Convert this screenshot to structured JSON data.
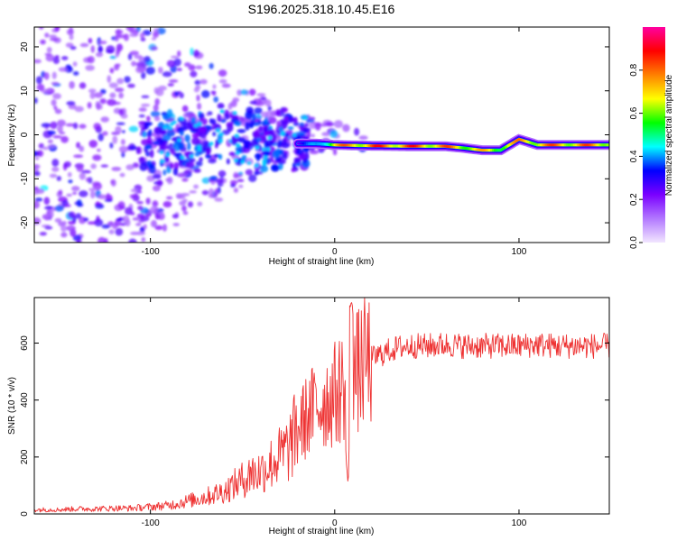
{
  "title": "S196.2025.318.10.45.E16",
  "chart_data": [
    {
      "type": "heatmap",
      "name": "spectrogram",
      "xlabel": "Height of straight line (km)",
      "ylabel": "Frequency (Hz)",
      "xlim": [
        -163,
        149
      ],
      "ylim": [
        -24.5,
        24.5
      ],
      "xticks": [
        -100,
        0,
        100
      ],
      "xtick_labels": [
        "-100",
        "0",
        "100"
      ],
      "yticks": [
        -20,
        -10,
        0,
        10,
        20
      ],
      "ytick_labels": [
        "-20",
        "-10",
        "0",
        "10",
        "20"
      ],
      "colorbar": {
        "label": "Normalized spectral amplitude",
        "range": [
          0,
          1
        ],
        "ticks": [
          0.0,
          0.2,
          0.4,
          0.6,
          0.8
        ],
        "tick_labels": [
          "0.0",
          "0.2",
          "0.4",
          "0.6",
          "0.8"
        ],
        "colors": [
          "#f2e6ff",
          "#b278ff",
          "#7a00ff",
          "#0000ff",
          "#00ffff",
          "#00ff00",
          "#ffff00",
          "#ff8000",
          "#ff0000",
          "#ff00a0"
        ]
      },
      "ridge": [
        {
          "x": -100,
          "f": -2.0,
          "amp": 0.35
        },
        {
          "x": -80,
          "f": -1.0,
          "amp": 0.3
        },
        {
          "x": -60,
          "f": 0.5,
          "amp": 0.3
        },
        {
          "x": -40,
          "f": -1.5,
          "amp": 0.3
        },
        {
          "x": -20,
          "f": -2.0,
          "amp": 0.3
        },
        {
          "x": -10,
          "f": -2.0,
          "amp": 0.45
        },
        {
          "x": 0,
          "f": -2.3,
          "amp": 0.8
        },
        {
          "x": 20,
          "f": -2.5,
          "amp": 0.9
        },
        {
          "x": 40,
          "f": -2.6,
          "amp": 0.9
        },
        {
          "x": 60,
          "f": -2.6,
          "amp": 0.85
        },
        {
          "x": 70,
          "f": -3.0,
          "amp": 0.8
        },
        {
          "x": 80,
          "f": -3.5,
          "amp": 0.75
        },
        {
          "x": 90,
          "f": -3.5,
          "amp": 0.75
        },
        {
          "x": 100,
          "f": -1.0,
          "amp": 0.8
        },
        {
          "x": 110,
          "f": -2.3,
          "amp": 0.85
        },
        {
          "x": 130,
          "f": -2.3,
          "amp": 0.85
        },
        {
          "x": 149,
          "f": -2.3,
          "amp": 0.85
        }
      ]
    },
    {
      "type": "line",
      "name": "snr",
      "xlabel": "Height of straight line (km)",
      "ylabel": "SNR (10 * v/v)",
      "xlim": [
        -163,
        149
      ],
      "ylim": [
        0,
        760
      ],
      "xticks": [
        -100,
        0,
        100
      ],
      "xtick_labels": [
        "-100",
        "0",
        "100"
      ],
      "yticks": [
        0,
        200,
        400,
        600
      ],
      "ytick_labels": [
        "0",
        "200",
        "400",
        "600"
      ],
      "color": "#ee3333",
      "series": [
        {
          "name": "SNR",
          "x": [
            -163,
            -150,
            -140,
            -130,
            -120,
            -110,
            -100,
            -90,
            -80,
            -70,
            -60,
            -55,
            -50,
            -45,
            -40,
            -35,
            -30,
            -25,
            -20,
            -15,
            -10,
            -5,
            0,
            5,
            10,
            15,
            20,
            25,
            30,
            35,
            40,
            50,
            60,
            70,
            80,
            90,
            100,
            110,
            120,
            130,
            140,
            149
          ],
          "y": [
            15,
            15,
            18,
            18,
            20,
            20,
            25,
            30,
            45,
            60,
            80,
            100,
            120,
            140,
            150,
            175,
            200,
            230,
            300,
            340,
            380,
            400,
            420,
            450,
            480,
            520,
            545,
            560,
            575,
            585,
            590,
            590,
            595,
            590,
            590,
            590,
            590,
            595,
            590,
            590,
            590,
            590
          ]
        }
      ]
    }
  ]
}
